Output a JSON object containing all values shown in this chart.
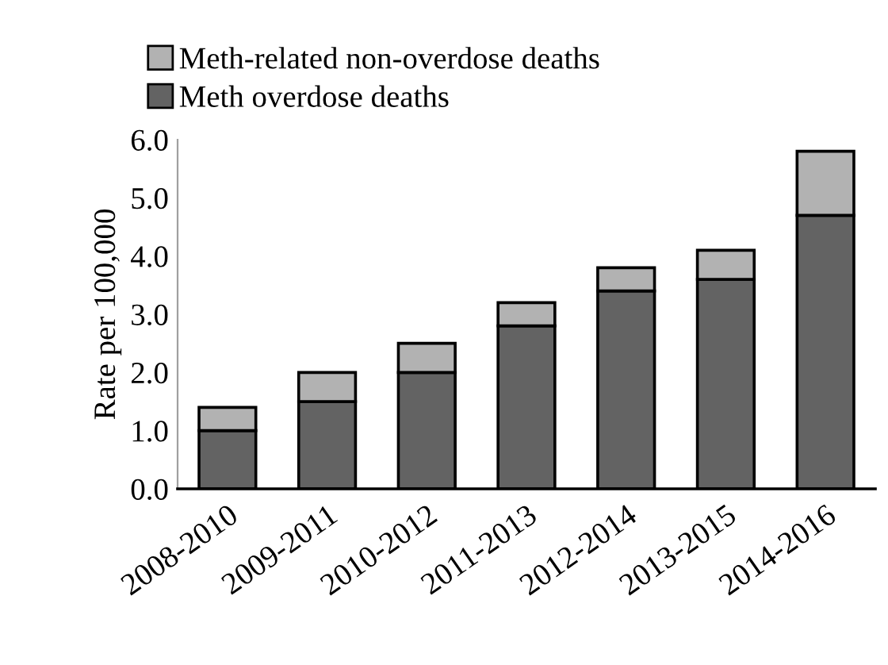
{
  "chart_data": {
    "type": "bar",
    "stacked": true,
    "ylabel": "Rate per 100,000",
    "categories": [
      "2008-2010",
      "2009-2011",
      "2010-2012",
      "2011-2013",
      "2012-2014",
      "2013-2015",
      "2014-2016"
    ],
    "series": [
      {
        "name": "Meth overdose deaths",
        "color": "#636363",
        "values": [
          1.0,
          1.5,
          2.0,
          2.8,
          3.4,
          3.6,
          4.7
        ]
      },
      {
        "name": "Meth-related non-overdose deaths",
        "color": "#b2b2b2",
        "values": [
          0.4,
          0.5,
          0.5,
          0.4,
          0.4,
          0.5,
          1.1
        ]
      }
    ],
    "ylim": [
      0,
      6
    ],
    "yticks": [
      {
        "value": 0,
        "label": "0.0"
      },
      {
        "value": 1,
        "label": "1.0"
      },
      {
        "value": 2,
        "label": "2.0"
      },
      {
        "value": 3,
        "label": "3.0"
      },
      {
        "value": 4,
        "label": "4.0"
      },
      {
        "value": 5,
        "label": "5.0"
      },
      {
        "value": 6,
        "label": "6.0"
      }
    ],
    "grid": false,
    "legend": "top"
  }
}
